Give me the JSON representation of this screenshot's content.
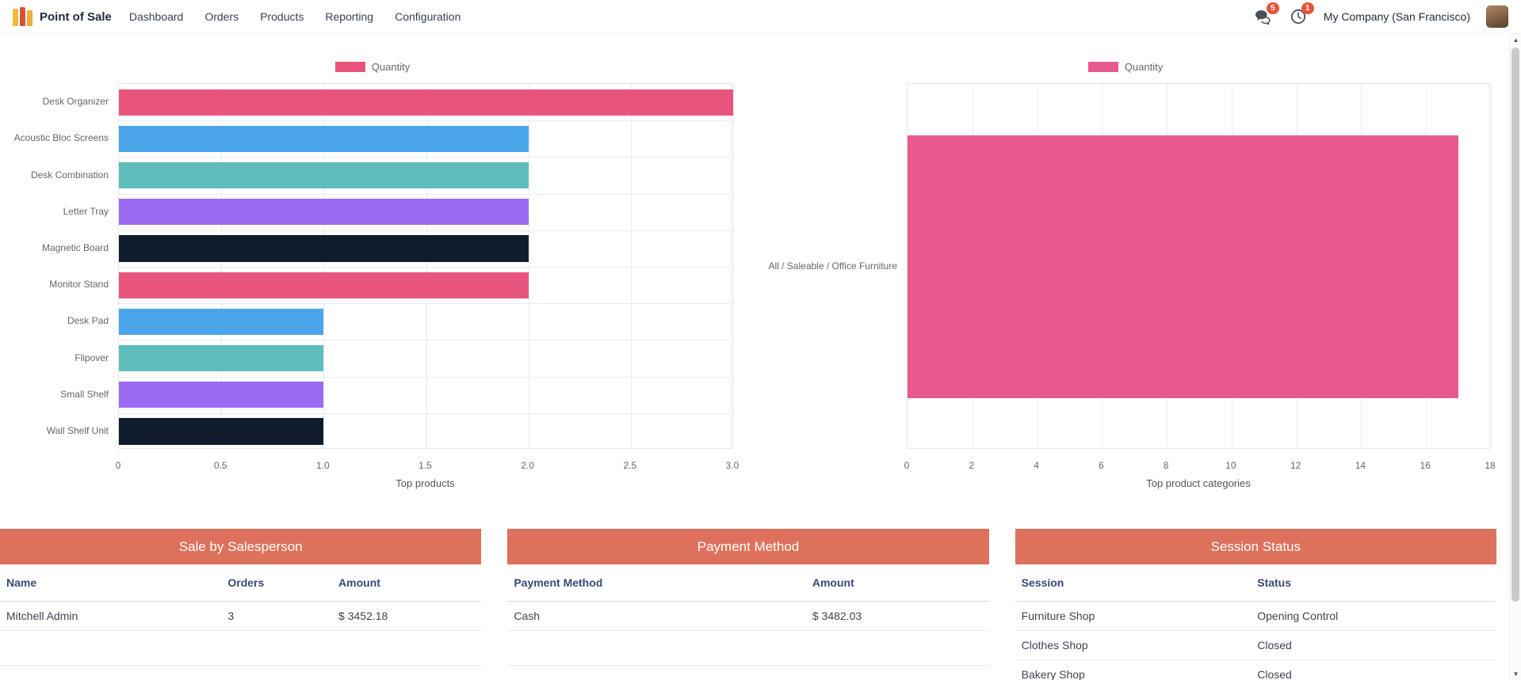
{
  "nav": {
    "app_name": "Point of Sale",
    "menu": [
      "Dashboard",
      "Orders",
      "Products",
      "Reporting",
      "Configuration"
    ],
    "messages_badge": "5",
    "activities_badge": "1",
    "company": "My Company (San Francisco)",
    "icons": {
      "app": "pos-app-tile",
      "messages": "chat-bubbles",
      "activities": "clock",
      "user": "avatar-photo"
    }
  },
  "colors": {
    "badge": "#e8543f",
    "table_header_bg": "#de715b",
    "table_header_text": "#ffffff",
    "column_header_text": "#374a7c",
    "grid_line": "#e9ecef",
    "axis_text": "#666666"
  },
  "chart_data": [
    {
      "type": "bar",
      "orientation": "horizontal",
      "title": "Top products",
      "legend": [
        "Quantity"
      ],
      "legend_position": "top",
      "legend_color": "#e7557d",
      "grid": true,
      "categories": [
        "Desk Organizer",
        "Acoustic Bloc Screens",
        "Desk Combination",
        "Letter Tray",
        "Magnetic Board",
        "Monitor Stand",
        "Desk Pad",
        "Flipover",
        "Small Shelf",
        "Wall Shelf Unit"
      ],
      "values": [
        3,
        2,
        2,
        2,
        2,
        2,
        1,
        1,
        1,
        1
      ],
      "bar_colors": [
        "#e7557d",
        "#4aa5ea",
        "#5fbdbd",
        "#9a6bf2",
        "#101b2c",
        "#e7557d",
        "#4aa5ea",
        "#5fbdbd",
        "#9a6bf2",
        "#101b2c"
      ],
      "xlim": [
        0,
        3
      ],
      "xticks": [
        "0",
        "0.5",
        "1.0",
        "1.5",
        "2.0",
        "2.5",
        "3.0"
      ]
    },
    {
      "type": "bar",
      "orientation": "horizontal",
      "title": "Top product categories",
      "legend": [
        "Quantity"
      ],
      "legend_position": "top",
      "legend_color": "#e7598f",
      "grid": true,
      "categories": [
        "All / Saleable / Office Furniture"
      ],
      "values": [
        17
      ],
      "bar_colors": [
        "#e7598f"
      ],
      "xlim": [
        0,
        18
      ],
      "xticks": [
        "0",
        "2",
        "4",
        "6",
        "8",
        "10",
        "12",
        "14",
        "16",
        "18"
      ]
    }
  ],
  "tables": [
    {
      "title": "Sale by Salesperson",
      "columns": [
        "Name",
        "Orders",
        "Amount"
      ],
      "rows": [
        [
          "Mitchell Admin",
          "3",
          "$ 3452.18"
        ]
      ]
    },
    {
      "title": "Payment Method",
      "columns": [
        "Payment Method",
        "Amount"
      ],
      "rows": [
        [
          "Cash",
          "$ 3482.03"
        ]
      ]
    },
    {
      "title": "Session Status",
      "columns": [
        "Session",
        "Status"
      ],
      "rows": [
        [
          "Furniture Shop",
          "Opening Control"
        ],
        [
          "Clothes Shop",
          "Closed"
        ],
        [
          "Bakery Shop",
          "Closed"
        ]
      ]
    }
  ]
}
